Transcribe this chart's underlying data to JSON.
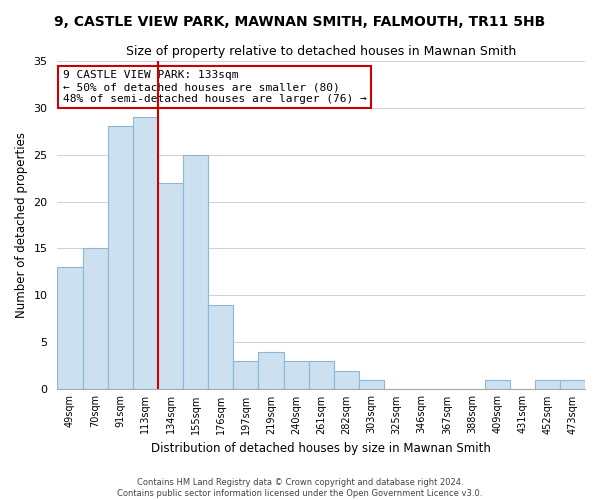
{
  "title_line1": "9, CASTLE VIEW PARK, MAWNAN SMITH, FALMOUTH, TR11 5HB",
  "title_line2": "Size of property relative to detached houses in Mawnan Smith",
  "xlabel": "Distribution of detached houses by size in Mawnan Smith",
  "ylabel": "Number of detached properties",
  "bin_labels": [
    "49sqm",
    "70sqm",
    "91sqm",
    "113sqm",
    "134sqm",
    "155sqm",
    "176sqm",
    "197sqm",
    "219sqm",
    "240sqm",
    "261sqm",
    "282sqm",
    "303sqm",
    "325sqm",
    "346sqm",
    "367sqm",
    "388sqm",
    "409sqm",
    "431sqm",
    "452sqm",
    "473sqm"
  ],
  "bar_heights": [
    13,
    15,
    28,
    29,
    22,
    25,
    9,
    3,
    4,
    3,
    3,
    2,
    1,
    0,
    0,
    0,
    0,
    1,
    0,
    1,
    1
  ],
  "bar_color": "#cce0f0",
  "bar_edge_color": "#89b8d8",
  "grid_color": "#d0d0d0",
  "vline_color": "#cc0000",
  "vline_x": 3.5,
  "annotation_title": "9 CASTLE VIEW PARK: 133sqm",
  "annotation_line1": "← 50% of detached houses are smaller (80)",
  "annotation_line2": "48% of semi-detached houses are larger (76) →",
  "annotation_box_facecolor": "#ffffff",
  "annotation_box_edgecolor": "#cc0000",
  "ylim": [
    0,
    35
  ],
  "yticks": [
    0,
    5,
    10,
    15,
    20,
    25,
    30,
    35
  ],
  "footer_line1": "Contains HM Land Registry data © Crown copyright and database right 2024.",
  "footer_line2": "Contains public sector information licensed under the Open Government Licence v3.0."
}
